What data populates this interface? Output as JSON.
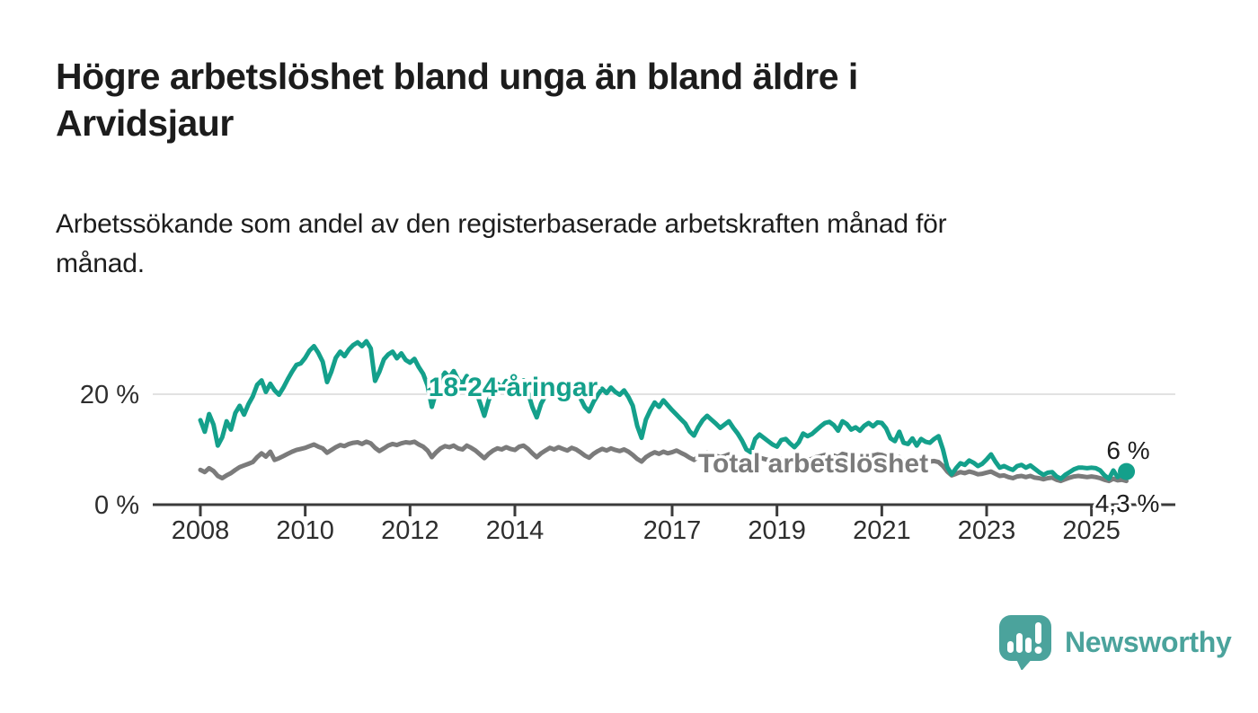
{
  "header": {
    "title_full": "Högre arbetslöshet bland unga än bland äldre i Arvidsjaur",
    "title_lines": [
      "Högre arbetslöshet bland unga än bland äldre i",
      "Arvidsjaur"
    ],
    "subtitle_full": "Arbetssökande som andel av den registerbaserade arbetskraften månad för månad.",
    "subtitle_lines": [
      "Arbetssökande som andel av den registerbaserade arbetskraften månad för",
      "månad."
    ]
  },
  "branding": {
    "name": "Newsworthy",
    "logo_color": "#4ba39c",
    "logo_icon": "bar-chart-speech-bubble"
  },
  "chart_data": {
    "type": "line",
    "title": "Högre arbetslöshet bland unga än bland äldre i Arvidsjaur",
    "subtitle": "Arbetssökande som andel av den registerbaserade arbetskraften månad för månad.",
    "unit": "%",
    "x_start": "2008-01",
    "x_end": "2025-09",
    "x_frequency": "monthly",
    "ylim": [
      0,
      32
    ],
    "grid": "horizontal-20-only",
    "legend_position": "inline-curve-labels",
    "x_ticks": [
      "2008",
      "2010",
      "2012",
      "2014",
      "2017",
      "2019",
      "2021",
      "2023",
      "2025"
    ],
    "x_tick_years": [
      2008,
      2010,
      2012,
      2014,
      2017,
      2019,
      2021,
      2023,
      2025
    ],
    "y_ticks": [
      {
        "value": 0,
        "label": "0 %"
      },
      {
        "value": 20,
        "label": "20 %"
      }
    ],
    "colors": {
      "youth": "#14a08b",
      "total": "#7b7b7b",
      "axis": "#3b3b3b",
      "grid": "#d9d9d9",
      "tick_text": "#2e2e2e",
      "end_label_text": "#1d1d1d",
      "halo": "#ffffff"
    },
    "series": [
      {
        "name": "Total arbetslöshet",
        "color": "#7b7b7b",
        "end_label": "4,3 %",
        "end_value": 4.3,
        "values": [
          6.3,
          5.9,
          6.6,
          6.1,
          5.2,
          4.8,
          5.3,
          5.7,
          6.3,
          6.8,
          7.1,
          7.4,
          7.7,
          8.6,
          9.3,
          8.7,
          9.6,
          8.1,
          8.4,
          8.8,
          9.2,
          9.6,
          9.9,
          10.1,
          10.3,
          10.6,
          10.9,
          10.5,
          10.2,
          9.4,
          9.9,
          10.4,
          10.8,
          10.6,
          11.0,
          11.2,
          11.3,
          11.0,
          11.4,
          11.1,
          10.3,
          9.7,
          10.2,
          10.7,
          11.0,
          10.8,
          11.1,
          11.3,
          11.2,
          11.4,
          10.9,
          10.5,
          9.8,
          8.6,
          9.5,
          10.2,
          10.6,
          10.4,
          10.7,
          10.2,
          10.0,
          10.7,
          10.3,
          9.8,
          9.1,
          8.4,
          9.2,
          9.8,
          10.2,
          10.0,
          10.4,
          10.1,
          9.9,
          10.5,
          10.7,
          10.1,
          9.3,
          8.6,
          9.3,
          9.8,
          10.3,
          10.0,
          10.4,
          10.1,
          9.8,
          10.3,
          10.0,
          9.5,
          8.9,
          8.5,
          9.2,
          9.7,
          10.1,
          9.8,
          10.2,
          9.9,
          9.7,
          10.0,
          9.6,
          9.0,
          8.3,
          7.8,
          8.6,
          9.1,
          9.5,
          9.2,
          9.6,
          9.3,
          9.5,
          9.8,
          9.4,
          9.0,
          8.5,
          8.1,
          8.7,
          9.1,
          9.4,
          9.1,
          8.9,
          8.6,
          8.8,
          9.1,
          8.7,
          8.3,
          7.9,
          7.5,
          7.8,
          8.2,
          8.5,
          8.3,
          8.1,
          7.9,
          8.0,
          8.3,
          8.1,
          7.8,
          7.6,
          7.9,
          8.3,
          8.1,
          8.3,
          8.6,
          8.8,
          9.0,
          9.1,
          8.9,
          8.6,
          9.2,
          9.0,
          8.7,
          8.9,
          8.6,
          8.9,
          9.1,
          8.9,
          9.1,
          9.0,
          8.7,
          8.3,
          8.1,
          8.6,
          8.0,
          7.9,
          8.2,
          7.8,
          8.1,
          7.9,
          7.8,
          7.9,
          7.7,
          7.0,
          6.0,
          5.3,
          5.6,
          5.9,
          5.7,
          6.0,
          5.8,
          5.5,
          5.6,
          5.8,
          6.0,
          5.6,
          5.2,
          5.3,
          5.0,
          4.8,
          5.1,
          5.2,
          5.0,
          5.2,
          4.9,
          4.8,
          4.6,
          4.8,
          4.9,
          4.5,
          4.3,
          4.6,
          4.9,
          5.1,
          5.2,
          5.1,
          5.0,
          5.1,
          5.0,
          4.8,
          4.5,
          4.3,
          4.7,
          4.4,
          4.5,
          4.3
        ]
      },
      {
        "name": "18-24-åringar",
        "color": "#14a08b",
        "end_label": "6 %",
        "end_value": 6.0,
        "end_dot": true,
        "values": [
          15.3,
          13.2,
          16.4,
          14.5,
          10.7,
          12.2,
          15.1,
          13.6,
          16.6,
          17.9,
          16.3,
          18.2,
          19.6,
          21.7,
          22.5,
          20.4,
          21.9,
          20.7,
          19.9,
          21.2,
          22.7,
          24.1,
          25.3,
          25.6,
          26.6,
          27.9,
          28.7,
          27.5,
          25.9,
          22.2,
          24.1,
          26.6,
          27.7,
          26.9,
          28.1,
          28.9,
          29.4,
          28.7,
          29.6,
          28.3,
          22.4,
          24.1,
          26.3,
          27.2,
          27.7,
          26.5,
          27.4,
          26.2,
          25.7,
          26.4,
          24.9,
          23.7,
          21.6,
          17.7,
          20.5,
          22.7,
          23.9,
          23.0,
          24.2,
          22.6,
          21.9,
          23.3,
          22.1,
          20.7,
          18.5,
          16.1,
          18.9,
          20.6,
          21.9,
          21.1,
          22.4,
          21.3,
          20.7,
          21.9,
          22.5,
          20.3,
          17.7,
          15.8,
          18.3,
          19.7,
          21.1,
          20.3,
          21.5,
          20.9,
          20.1,
          21.3,
          20.5,
          19.3,
          17.7,
          16.9,
          18.6,
          19.9,
          21.0,
          20.2,
          21.2,
          20.4,
          19.9,
          20.7,
          19.5,
          17.9,
          14.3,
          12.1,
          15.4,
          17.1,
          18.5,
          17.7,
          18.9,
          18.0,
          17.1,
          16.3,
          15.5,
          14.7,
          13.3,
          12.5,
          14.1,
          15.3,
          16.1,
          15.4,
          14.7,
          13.9,
          14.5,
          15.1,
          13.9,
          12.9,
          11.6,
          10.0,
          9.5,
          11.9,
          12.7,
          12.1,
          11.5,
          10.9,
          10.5,
          11.7,
          11.9,
          11.1,
          10.4,
          11.3,
          12.9,
          12.4,
          12.8,
          13.5,
          14.2,
          14.8,
          15.0,
          14.4,
          13.4,
          15.1,
          14.6,
          13.6,
          14.0,
          13.4,
          14.3,
          14.8,
          14.2,
          14.9,
          14.8,
          13.8,
          12.0,
          11.5,
          13.2,
          11.2,
          11.0,
          12.0,
          10.7,
          11.9,
          11.4,
          11.2,
          11.9,
          12.4,
          10.0,
          6.8,
          5.5,
          6.6,
          7.5,
          7.2,
          8.0,
          7.6,
          7.0,
          7.4,
          8.2,
          9.1,
          7.8,
          6.7,
          7.0,
          6.6,
          6.3,
          7.0,
          7.2,
          6.7,
          7.1,
          6.5,
          5.9,
          5.4,
          5.8,
          5.9,
          5.1,
          4.7,
          5.4,
          5.9,
          6.4,
          6.7,
          6.7,
          6.6,
          6.7,
          6.6,
          6.2,
          5.3,
          4.7,
          6.2,
          5.0,
          5.6,
          6.0
        ]
      }
    ],
    "curve_labels": [
      {
        "text": "18-24-åringar",
        "color": "#14a08b"
      },
      {
        "text": "Total arbetslöshet",
        "color": "#7b7b7b"
      }
    ]
  }
}
